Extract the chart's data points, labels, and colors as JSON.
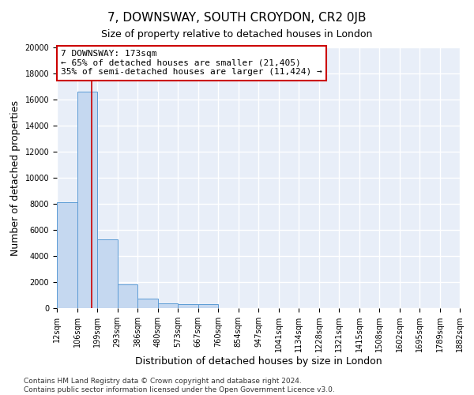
{
  "title": "7, DOWNSWAY, SOUTH CROYDON, CR2 0JB",
  "subtitle": "Size of property relative to detached houses in London",
  "xlabel": "Distribution of detached houses by size in London",
  "ylabel": "Number of detached properties",
  "bar_values": [
    8100,
    16600,
    5300,
    1800,
    700,
    350,
    280,
    280,
    0,
    0,
    0,
    0,
    0,
    0,
    0,
    0,
    0,
    0,
    0,
    0
  ],
  "bin_edges": [
    12,
    106,
    199,
    293,
    386,
    480,
    573,
    667,
    760,
    854,
    947,
    1041,
    1134,
    1228,
    1321,
    1415,
    1508,
    1602,
    1695,
    1789,
    1882
  ],
  "tick_labels": [
    "12sqm",
    "106sqm",
    "199sqm",
    "293sqm",
    "386sqm",
    "480sqm",
    "573sqm",
    "667sqm",
    "760sqm",
    "854sqm",
    "947sqm",
    "1041sqm",
    "1134sqm",
    "1228sqm",
    "1321sqm",
    "1415sqm",
    "1508sqm",
    "1602sqm",
    "1695sqm",
    "1789sqm",
    "1882sqm"
  ],
  "property_size": 173,
  "red_line_color": "#cc0000",
  "bar_color": "#c5d8f0",
  "bar_edge_color": "#5b9bd5",
  "annotation_text": "7 DOWNSWAY: 173sqm\n← 65% of detached houses are smaller (21,405)\n35% of semi-detached houses are larger (11,424) →",
  "annotation_box_color": "#ffffff",
  "annotation_box_edge": "#cc0000",
  "ylim": [
    0,
    20000
  ],
  "yticks": [
    0,
    2000,
    4000,
    6000,
    8000,
    10000,
    12000,
    14000,
    16000,
    18000,
    20000
  ],
  "footnote": "Contains HM Land Registry data © Crown copyright and database right 2024.\nContains public sector information licensed under the Open Government Licence v3.0.",
  "bg_color": "#e8eef8",
  "grid_color": "#ffffff",
  "title_fontsize": 11,
  "subtitle_fontsize": 9,
  "axis_label_fontsize": 9,
  "tick_fontsize": 7,
  "annotation_fontsize": 8,
  "footnote_fontsize": 6.5
}
